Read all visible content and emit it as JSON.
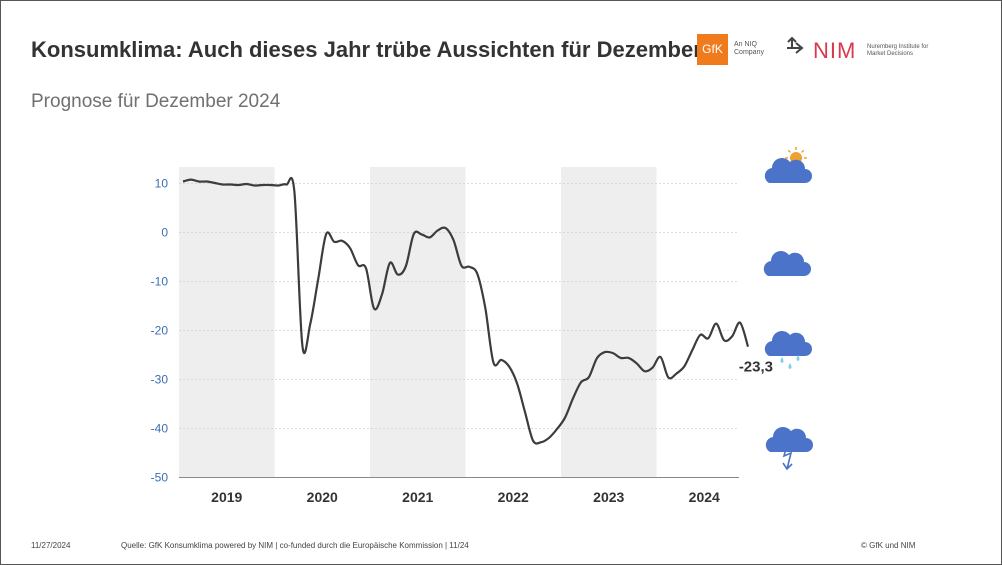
{
  "header": {
    "title": "Konsumklima: Auch dieses Jahr trübe Aussichten für Dezember",
    "subtitle": "Prognose für Dezember 2024",
    "gfk_logo_text": "GfK",
    "gfk_tagline": "An NIQ Company",
    "nim_logo_text": "NIM",
    "nim_tagline": "Nuremberg Institute for Market Decisions"
  },
  "footer": {
    "date": "11/27/2024",
    "source": "Quelle: GfK Konsumklima powered by NIM | co-funded durch die Europäische Kommission | 11/24",
    "copyright": "© GfK und NIM"
  },
  "icons": {
    "weather": [
      "sun-cloud-icon",
      "cloud-icon",
      "rain-cloud-icon",
      "thunderstorm-cloud-icon"
    ],
    "cloud_color": "#4a73c9",
    "sun_color": "#f0a030",
    "rain_color": "#7fd0e6"
  },
  "chart_data": {
    "type": "line",
    "title": "",
    "xlabel": "",
    "ylabel": "",
    "ylim": [
      -50,
      10
    ],
    "yticks": [
      10,
      0,
      -10,
      -20,
      -30,
      -40,
      -50
    ],
    "year_labels": [
      "2019",
      "2020",
      "2021",
      "2022",
      "2023",
      "2024"
    ],
    "shaded_years": [
      "2019",
      "2021",
      "2023"
    ],
    "end_label": "-23,3",
    "grid": "horizontal dotted",
    "line_color": "#3c3c3c",
    "band_color": "#eeeeee",
    "tick_color": "#3a6fb5",
    "series": [
      {
        "x": [
          "2019-01",
          "2019-02",
          "2019-03",
          "2019-04",
          "2019-05",
          "2019-06",
          "2019-07",
          "2019-08",
          "2019-09",
          "2019-10",
          "2019-11",
          "2019-12",
          "2020-01",
          "2020-02",
          "2020-03",
          "2020-04",
          "2020-05",
          "2020-06",
          "2020-07",
          "2020-08",
          "2020-09",
          "2020-10",
          "2020-11",
          "2020-12",
          "2021-01",
          "2021-02",
          "2021-03",
          "2021-04",
          "2021-05",
          "2021-06",
          "2021-07",
          "2021-08",
          "2021-09",
          "2021-10",
          "2021-11",
          "2021-12",
          "2022-01",
          "2022-02",
          "2022-03",
          "2022-04",
          "2022-05",
          "2022-06",
          "2022-07",
          "2022-08",
          "2022-09",
          "2022-10",
          "2022-11",
          "2022-12",
          "2023-01",
          "2023-02",
          "2023-03",
          "2023-04",
          "2023-05",
          "2023-06",
          "2023-07",
          "2023-08",
          "2023-09",
          "2023-10",
          "2023-11",
          "2023-12",
          "2024-01",
          "2024-02",
          "2024-03",
          "2024-04",
          "2024-05",
          "2024-06",
          "2024-07",
          "2024-08",
          "2024-09",
          "2024-10",
          "2024-11",
          "2024-12"
        ],
        "values": [
          10.4,
          10.8,
          10.4,
          10.4,
          10.1,
          9.8,
          9.8,
          9.7,
          9.9,
          9.6,
          9.7,
          9.7,
          9.6,
          9.8,
          8.3,
          -23.1,
          -18.6,
          -9.4,
          -0.3,
          -1.9,
          -1.7,
          -3.2,
          -6.7,
          -7.3,
          -15.5,
          -12.7,
          -6.2,
          -8.6,
          -6.9,
          -0.3,
          -0.4,
          -1.0,
          0.4,
          0.9,
          -1.6,
          -6.8,
          -7.0,
          -8.5,
          -15.5,
          -26.5,
          -26.0,
          -27.4,
          -30.9,
          -36.8,
          -42.5,
          -42.8,
          -41.9,
          -40.1,
          -37.8,
          -33.9,
          -30.6,
          -29.5,
          -25.7,
          -24.4,
          -24.6,
          -25.6,
          -25.6,
          -26.7,
          -28.3,
          -27.6,
          -25.4,
          -29.6,
          -28.8,
          -27.3,
          -24.0,
          -20.9,
          -21.6,
          -18.6,
          -22.0,
          -21.2,
          -18.4,
          -23.3
        ]
      }
    ]
  }
}
